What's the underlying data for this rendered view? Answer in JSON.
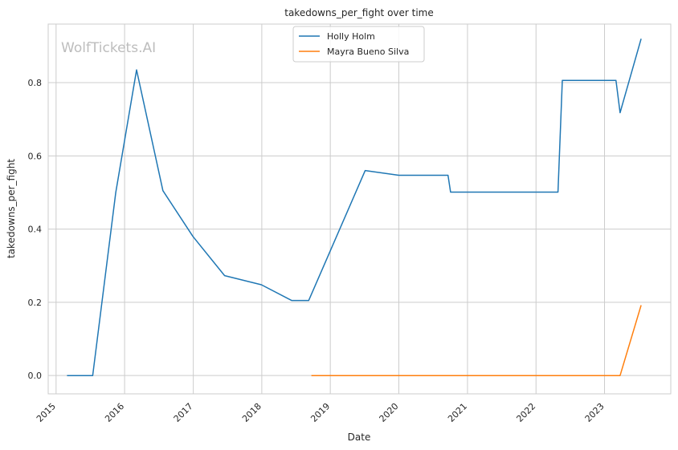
{
  "chart_data": {
    "type": "line",
    "title": "takedowns_per_fight over time",
    "xlabel": "Date",
    "ylabel": "takedowns_per_fight",
    "watermark": "WolfTickets.AI",
    "x_ticks": [
      "2015",
      "2016",
      "2017",
      "2018",
      "2019",
      "2020",
      "2021",
      "2022",
      "2023"
    ],
    "y_ticks": [
      "0.0",
      "0.2",
      "0.4",
      "0.6",
      "0.8"
    ],
    "xlim": [
      "2014-11-20",
      "2023-12-20"
    ],
    "ylim": [
      -0.05,
      0.96
    ],
    "grid": true,
    "legend_position": "top-center",
    "series": [
      {
        "name": "Holly Holm",
        "color": "#1f77b4",
        "points": [
          [
            "2015-02-28",
            0.0
          ],
          [
            "2015-07-15",
            0.0
          ],
          [
            "2015-11-15",
            0.5
          ],
          [
            "2016-03-05",
            0.835
          ],
          [
            "2016-07-23",
            0.505
          ],
          [
            "2016-12-30",
            0.38
          ],
          [
            "2017-06-17",
            0.273
          ],
          [
            "2017-12-30",
            0.248
          ],
          [
            "2018-06-09",
            0.205
          ],
          [
            "2018-09-08",
            0.205
          ],
          [
            "2019-07-06",
            0.56
          ],
          [
            "2020-01-01",
            0.547
          ],
          [
            "2020-09-19",
            0.547
          ],
          [
            "2020-10-03",
            0.501
          ],
          [
            "2022-04-28",
            0.501
          ],
          [
            "2022-05-21",
            0.806
          ],
          [
            "2023-03-03",
            0.806
          ],
          [
            "2023-03-25",
            0.718
          ],
          [
            "2023-07-15",
            0.92
          ]
        ]
      },
      {
        "name": "Mayra Bueno Silva",
        "color": "#ff7f0e",
        "points": [
          [
            "2018-09-22",
            0.0
          ],
          [
            "2023-03-25",
            0.0
          ],
          [
            "2023-07-15",
            0.192
          ]
        ]
      }
    ]
  }
}
